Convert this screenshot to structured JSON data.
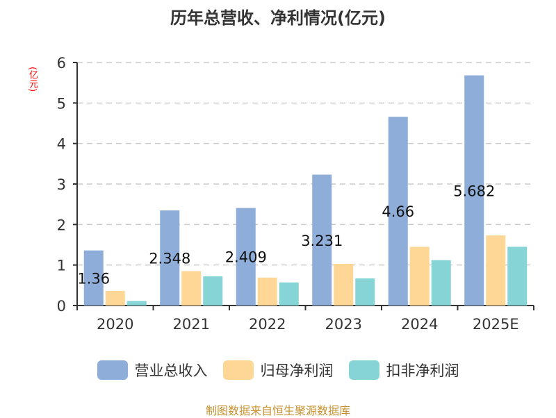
{
  "title": "历年总营收、净利情况(亿元)",
  "unit_label": "(亿元)",
  "source": "制图数据来自恒生聚源数据库",
  "colors": {
    "revenue": "#8eadd9",
    "parent_net_profit": "#fed797",
    "deducted_net_profit": "#86d4d6",
    "unit": "#ff0000",
    "source": "#c6912e"
  },
  "legend": [
    {
      "label": "营业总收入",
      "color": "#8eadd9"
    },
    {
      "label": "归母净利润",
      "color": "#fed797"
    },
    {
      "label": "扣非净利润",
      "color": "#86d4d6"
    }
  ],
  "chart_data": {
    "type": "bar",
    "title": "历年总营收、净利情况(亿元)",
    "xlabel": "",
    "ylabel": "(亿元)",
    "ylim": [
      0,
      6
    ],
    "yticks": [
      0,
      1,
      2,
      3,
      4,
      5,
      6
    ],
    "grid": true,
    "legend_position": "bottom",
    "categories": [
      "2020",
      "2021",
      "2022",
      "2023",
      "2024",
      "2025E"
    ],
    "series": [
      {
        "name": "营业总收入",
        "values": [
          1.36,
          2.348,
          2.409,
          3.231,
          4.66,
          5.682
        ],
        "data_labels": [
          "1.36",
          "2.348",
          "2.409",
          "3.231",
          "4.66",
          "5.682"
        ]
      },
      {
        "name": "归母净利润",
        "values": [
          0.36,
          0.85,
          0.69,
          1.03,
          1.45,
          1.73
        ]
      },
      {
        "name": "扣非净利润",
        "values": [
          0.11,
          0.72,
          0.57,
          0.67,
          1.12,
          1.45
        ]
      }
    ]
  }
}
